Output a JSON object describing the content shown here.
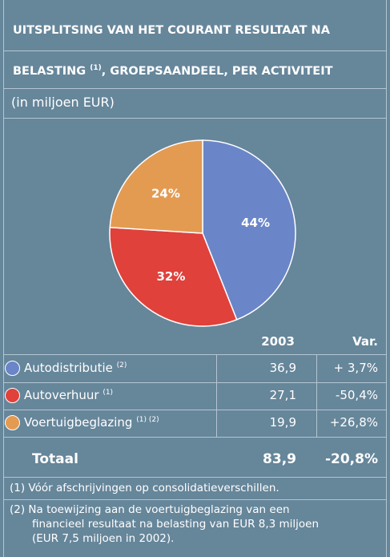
{
  "header": {
    "title_line1": "UITSPLITSING VAN HET COURANT RESULTAAT NA",
    "title_line2": [
      "BELASTING",
      "(1)",
      ", GROEPSAANDEEL, PER ACTIVITEIT"
    ],
    "unit": "(in miljoen EUR)"
  },
  "chart_data": {
    "type": "pie",
    "categories": [
      "Autodistributie",
      "Autoverhuur",
      "Voertuigbeglazing"
    ],
    "values": [
      44,
      32,
      24
    ],
    "value_labels": [
      "44%",
      "32%",
      "24%"
    ],
    "colors": [
      "#6a86c8",
      "#e0413b",
      "#e39b52"
    ]
  },
  "table": {
    "columns": [
      "2003",
      "Var."
    ],
    "rows": [
      {
        "name": "Autodistributie",
        "note": "(2)",
        "value": "36,9",
        "var": "+ 3,7%"
      },
      {
        "name": "Autoverhuur",
        "note": "(1)",
        "value": "27,1",
        "var": "-50,4%"
      },
      {
        "name": "Voertuigbeglazing",
        "note": "(1) (2)",
        "value": "19,9",
        "var": "+26,8%"
      }
    ],
    "total": {
      "name": "Totaal",
      "value": "83,9",
      "var": "-20,8%"
    }
  },
  "footnotes": [
    "(1) Vóór afschrijvingen op consolidatieverschillen.",
    "(2) Na toewijzing aan de voertuigbeglazing van een",
    "financieel resultaat na belasting van EUR 8,3 miljoen",
    "(EUR 7,5 miljoen in 2002)."
  ]
}
